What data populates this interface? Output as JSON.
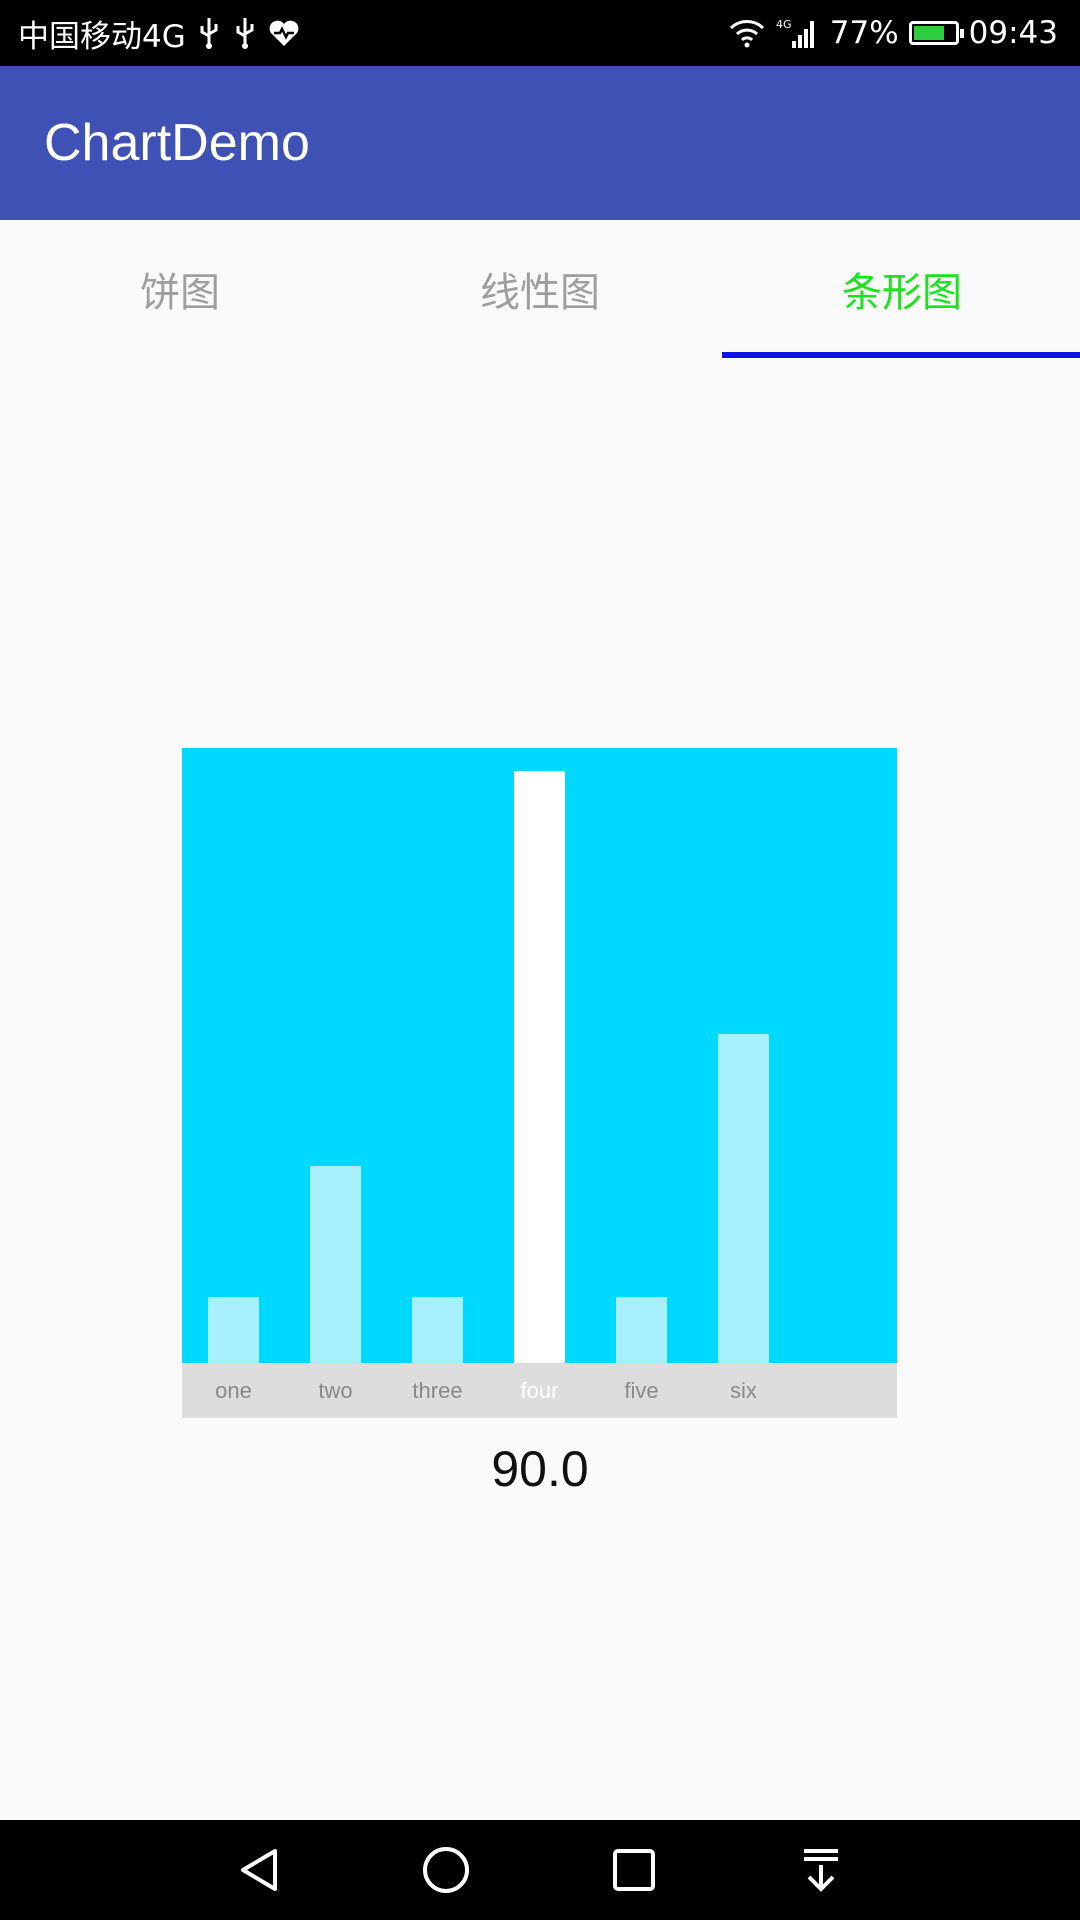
{
  "status_bar": {
    "carrier": "中国移动4G",
    "battery_percent_label": "77%",
    "battery_level": 0.77,
    "time": "09:43",
    "network_label": "4G"
  },
  "app_bar": {
    "title": "ChartDemo"
  },
  "tabs": [
    {
      "label": "饼图",
      "active": false
    },
    {
      "label": "线性图",
      "active": false
    },
    {
      "label": "条形图",
      "active": true
    }
  ],
  "colors": {
    "app_bar": "#3f51b5",
    "tab_active": "#1ee21e",
    "tab_inactive": "#9e9e9e",
    "tab_indicator": "#1010e8",
    "chart_background": "#00d9ff",
    "bar": "#a8f0ff",
    "bar_selected": "#ffffff",
    "axis_background": "#dddddd"
  },
  "chart_data": {
    "type": "bar",
    "categories": [
      "one",
      "two",
      "three",
      "four",
      "five",
      "six"
    ],
    "values": [
      10,
      30,
      10,
      90,
      10,
      50
    ],
    "ylim": [
      0,
      93.5
    ],
    "selected_index": 3,
    "grid": false,
    "legend": "none"
  },
  "selected_value": "90.0"
}
